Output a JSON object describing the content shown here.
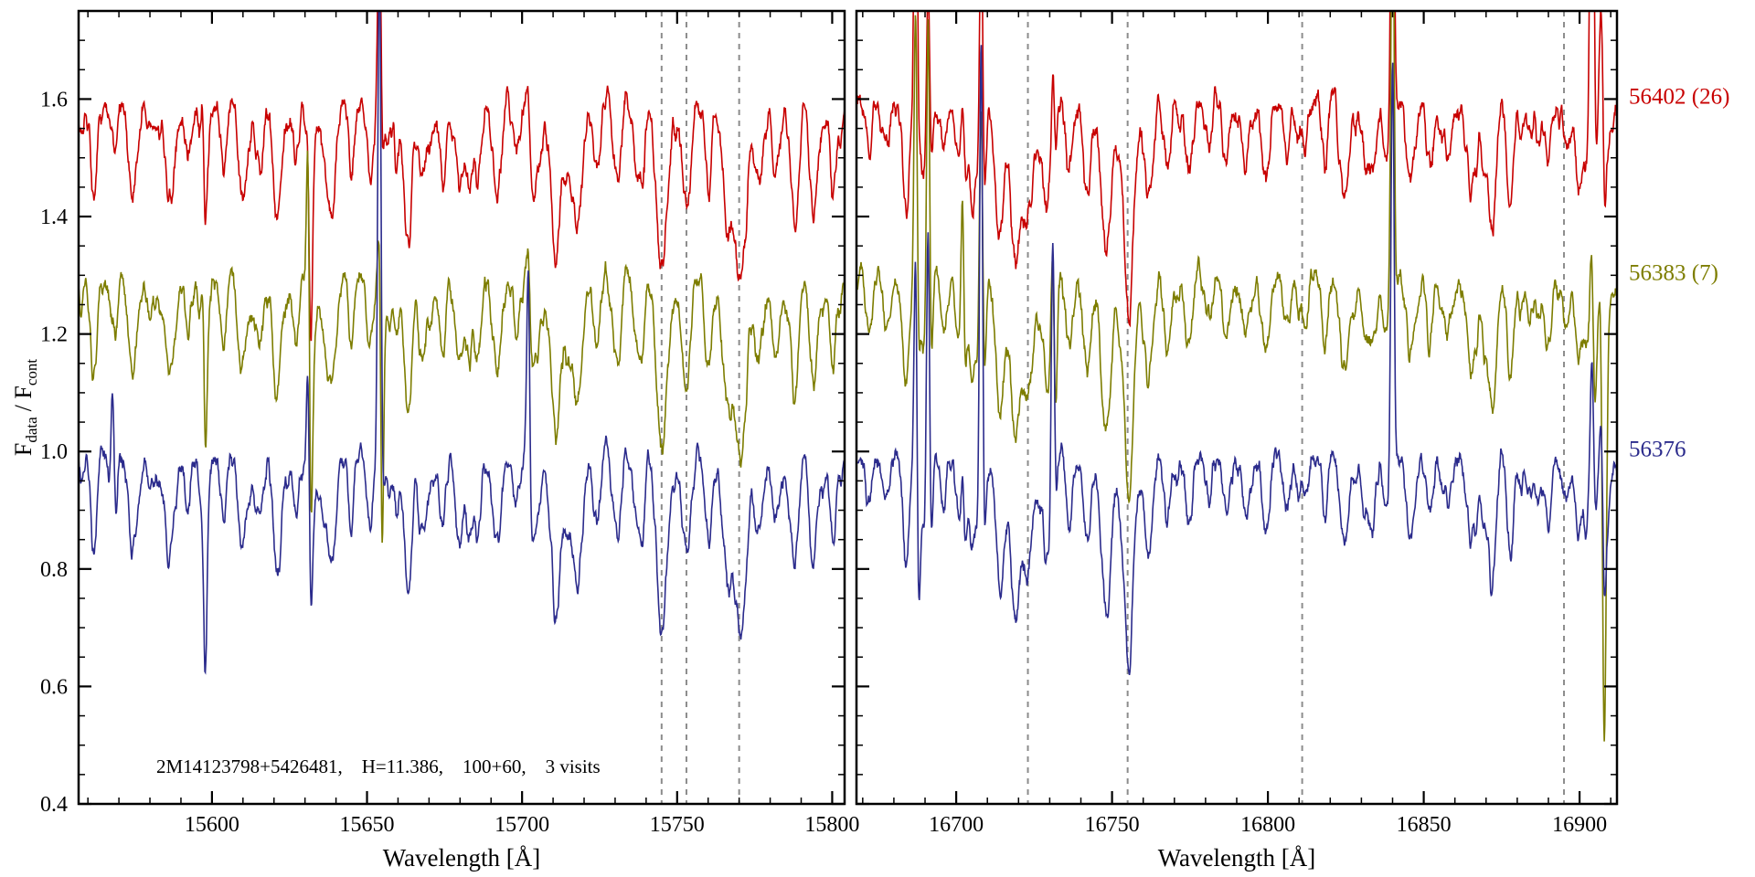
{
  "figure": {
    "annotation": "2M14123798+5426481,    H=11.386,    100+60,    3 visits",
    "ylabel_parts": {
      "base1": "F",
      "sub1": "data",
      "base2": "/ F",
      "sub2": "cont"
    }
  },
  "chart_data": {
    "type": "line",
    "title": "",
    "ylabel": "F_data / F_cont",
    "ylim": [
      0.4,
      1.75
    ],
    "y_major_ticks": [
      0.4,
      0.6,
      0.8,
      1.0,
      1.2,
      1.4,
      1.6
    ],
    "marker_line_color": "#8c8c8c",
    "series": [
      {
        "name": "56402 (26)",
        "color": "#c80000",
        "offset": 0.6,
        "seed": 11,
        "noise": 0.021
      },
      {
        "name": "56383 (7)",
        "color": "#7d7d00",
        "offset": 0.3,
        "seed": 22,
        "noise": 0.019
      },
      {
        "name": "56376",
        "color": "#2b2b8c",
        "offset": 0.0,
        "seed": 33,
        "noise": 0.018
      }
    ],
    "panels": [
      {
        "id": "left",
        "xlabel": "Wavelength [Å]",
        "xlim": [
          15557,
          15804
        ],
        "x_major_ticks": [
          15600,
          15650,
          15700,
          15750,
          15800
        ],
        "x_minor_step": 10,
        "dashed_lines": [
          15745,
          15753,
          15770
        ],
        "absorption_lines": [
          [
            15562,
            0.07,
            1.0
          ],
          [
            15568,
            0.1,
            1.1
          ],
          [
            15574,
            0.08,
            1.0
          ],
          [
            15580,
            0.06,
            0.9
          ],
          [
            15586,
            0.12,
            1.2
          ],
          [
            15592,
            0.09,
            1.0
          ],
          [
            15598,
            0.11,
            1.1
          ],
          [
            15604,
            0.07,
            0.9
          ],
          [
            15610,
            0.13,
            1.2
          ],
          [
            15616,
            0.09,
            1.0
          ],
          [
            15621,
            0.16,
            1.3
          ],
          [
            15627,
            0.11,
            1.0
          ],
          [
            15632,
            0.09,
            1.0
          ],
          [
            15639,
            0.15,
            1.3
          ],
          [
            15645,
            0.08,
            0.9
          ],
          [
            15651,
            0.12,
            1.1
          ],
          [
            15657,
            0.09,
            1.0
          ],
          [
            15663,
            0.18,
            1.4
          ],
          [
            15668,
            0.12,
            1.1
          ],
          [
            15674,
            0.09,
            1.0
          ],
          [
            15680,
            0.13,
            1.2
          ],
          [
            15686,
            0.1,
            1.0
          ],
          [
            15692,
            0.14,
            1.2
          ],
          [
            15698,
            0.08,
            0.9
          ],
          [
            15704,
            0.11,
            1.1
          ],
          [
            15711,
            0.15,
            1.3
          ],
          [
            15718,
            0.21,
            1.6
          ],
          [
            15724,
            0.13,
            1.1
          ],
          [
            15731,
            0.1,
            1.0
          ],
          [
            15737,
            0.12,
            1.1
          ],
          [
            15745,
            0.3,
            1.7
          ],
          [
            15753,
            0.19,
            1.4
          ],
          [
            15760,
            0.12,
            1.1
          ],
          [
            15766,
            0.14,
            1.2
          ],
          [
            15770,
            0.28,
            2.0
          ],
          [
            15776,
            0.13,
            1.2
          ],
          [
            15782,
            0.09,
            1.0
          ],
          [
            15788,
            0.11,
            1.1
          ],
          [
            15794,
            0.13,
            1.2
          ],
          [
            15800,
            0.1,
            1.0
          ]
        ],
        "spikes": [
          {
            "x": 15568,
            "sigma": 0.5,
            "up": [
              0.04,
              0.05,
              0.2
            ],
            "down": [
              0.02,
              0.03,
              0.06
            ]
          },
          {
            "x": 15597,
            "sigma": 0.5,
            "up": [
              0.14,
              0.16,
              0.04
            ],
            "down": [
              0.08,
              0.18,
              0.22
            ]
          },
          {
            "x": 15631,
            "sigma": 0.5,
            "up": [
              0.08,
              0.4,
              0.3
            ],
            "down": [
              0.2,
              0.26,
              0.1
            ]
          },
          {
            "x": 15654,
            "sigma": 0.5,
            "up": [
              0.34,
              0.12,
              0.9
            ],
            "down": [
              0.08,
              0.45,
              0.1
            ]
          },
          {
            "x": 15702,
            "sigma": 0.5,
            "up": [
              0.05,
              0.07,
              0.34
            ],
            "down": [
              0.04,
              0.05,
              0.06
            ]
          }
        ]
      },
      {
        "id": "right",
        "xlabel": "Wavelength [Å]",
        "xlim": [
          16668,
          16912
        ],
        "x_major_ticks": [
          16700,
          16750,
          16800,
          16850,
          16900
        ],
        "x_minor_step": 10,
        "dashed_lines": [
          16723,
          16755,
          16811,
          16895
        ],
        "absorption_lines": [
          [
            16672,
            0.09,
            1.0
          ],
          [
            16678,
            0.07,
            1.0
          ],
          [
            16684,
            0.11,
            1.1
          ],
          [
            16690,
            0.13,
            1.2
          ],
          [
            16696,
            0.09,
            1.0
          ],
          [
            16702,
            0.11,
            1.1
          ],
          [
            16708,
            0.14,
            1.2
          ],
          [
            16714,
            0.18,
            1.5
          ],
          [
            16719,
            0.21,
            1.7
          ],
          [
            16723,
            0.19,
            1.5
          ],
          [
            16729,
            0.11,
            1.1
          ],
          [
            16736,
            0.1,
            1.0
          ],
          [
            16742,
            0.15,
            1.3
          ],
          [
            16748,
            0.2,
            1.7
          ],
          [
            16755,
            0.25,
            2.0
          ],
          [
            16762,
            0.14,
            1.2
          ],
          [
            16768,
            0.1,
            1.0
          ],
          [
            16775,
            0.07,
            1.0
          ],
          [
            16781,
            0.08,
            1.0
          ],
          [
            16787,
            0.09,
            1.0
          ],
          [
            16793,
            0.07,
            0.9
          ],
          [
            16799,
            0.08,
            1.0
          ],
          [
            16806,
            0.1,
            1.1
          ],
          [
            16812,
            0.08,
            1.0
          ],
          [
            16818,
            0.07,
            0.9
          ],
          [
            16825,
            0.09,
            1.0
          ],
          [
            16831,
            0.08,
            1.0
          ],
          [
            16838,
            0.07,
            0.9
          ],
          [
            16845,
            0.09,
            1.0
          ],
          [
            16852,
            0.11,
            1.1
          ],
          [
            16858,
            0.08,
            1.0
          ],
          [
            16865,
            0.09,
            1.0
          ],
          [
            16872,
            0.1,
            1.1
          ],
          [
            16878,
            0.11,
            1.1
          ],
          [
            16884,
            0.08,
            1.0
          ],
          [
            16890,
            0.1,
            1.0
          ],
          [
            16896,
            0.09,
            1.0
          ],
          [
            16902,
            0.11,
            1.1
          ],
          [
            16908,
            0.09,
            1.0
          ]
        ],
        "spikes": [
          {
            "x": 16687,
            "sigma": 0.5,
            "up": [
              0.7,
              0.5,
              0.4
            ],
            "down": [
              0.06,
              0.1,
              0.25
            ]
          },
          {
            "x": 16691,
            "sigma": 0.5,
            "up": [
              0.32,
              0.55,
              0.5
            ],
            "down": [
              0.08,
              0.16,
              0.18
            ]
          },
          {
            "x": 16702,
            "sigma": 0.5,
            "up": [
              0.14,
              0.26,
              0.1
            ],
            "down": [
              0.05,
              0.08,
              0.05
            ]
          },
          {
            "x": 16708,
            "sigma": 0.5,
            "up": [
              0.5,
              0.45,
              0.85
            ],
            "down": [
              0.08,
              0.1,
              0.1
            ]
          },
          {
            "x": 16731,
            "sigma": 0.5,
            "up": [
              0.1,
              0.14,
              0.45
            ],
            "down": [
              0.08,
              0.25,
              0.1
            ]
          },
          {
            "x": 16840,
            "sigma": 0.5,
            "up": [
              0.8,
              0.75,
              0.7
            ],
            "down": [
              0.04,
              0.05,
              0.05
            ]
          },
          {
            "x": 16904,
            "sigma": 0.6,
            "up": [
              0.85,
              0.15,
              0.25
            ],
            "down": [
              0.12,
              0.18,
              0.08
            ]
          },
          {
            "x": 16907,
            "sigma": 0.6,
            "up": [
              0.25,
              0.08,
              0.15
            ],
            "down": [
              0.08,
              0.7,
              0.15
            ]
          }
        ]
      }
    ]
  }
}
